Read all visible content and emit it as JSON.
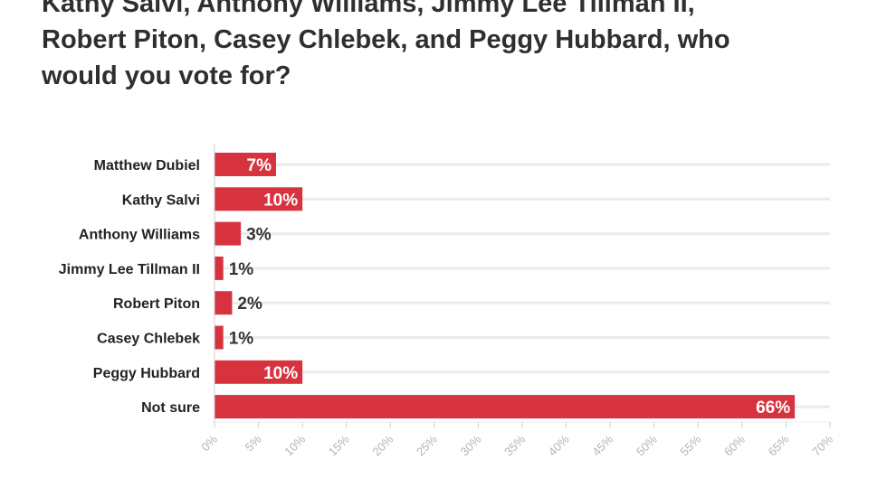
{
  "title_lines": [
    "Kathy Salvi, Anthony Williams, Jimmy Lee Tillman II,",
    "Robert Piton, Casey Chlebek, and Peggy Hubbard, who",
    "would you vote for?"
  ],
  "colors": {
    "bar": "#d7333f",
    "grid": "#ebebeb",
    "axis": "#cccccc"
  },
  "chart_data": {
    "type": "bar",
    "orientation": "horizontal",
    "categories": [
      "Matthew Dubiel",
      "Kathy Salvi",
      "Anthony Williams",
      "Jimmy Lee Tillman II",
      "Robert Piton",
      "Casey Chlebek",
      "Peggy Hubbard",
      "Not sure"
    ],
    "values": [
      7,
      10,
      3,
      1,
      2,
      1,
      10,
      66
    ],
    "value_labels": [
      "7%",
      "10%",
      "3%",
      "1%",
      "2%",
      "1%",
      "10%",
      "66%"
    ],
    "xlim": [
      0,
      70
    ],
    "ticks": [
      0,
      5,
      10,
      15,
      20,
      25,
      30,
      35,
      40,
      45,
      50,
      55,
      60,
      65,
      70
    ],
    "tick_labels": [
      "0%",
      "5%",
      "10%",
      "15%",
      "20%",
      "25%",
      "30%",
      "35%",
      "40%",
      "45%",
      "50%",
      "55%",
      "60%",
      "65%",
      "70%"
    ],
    "grid": true
  }
}
